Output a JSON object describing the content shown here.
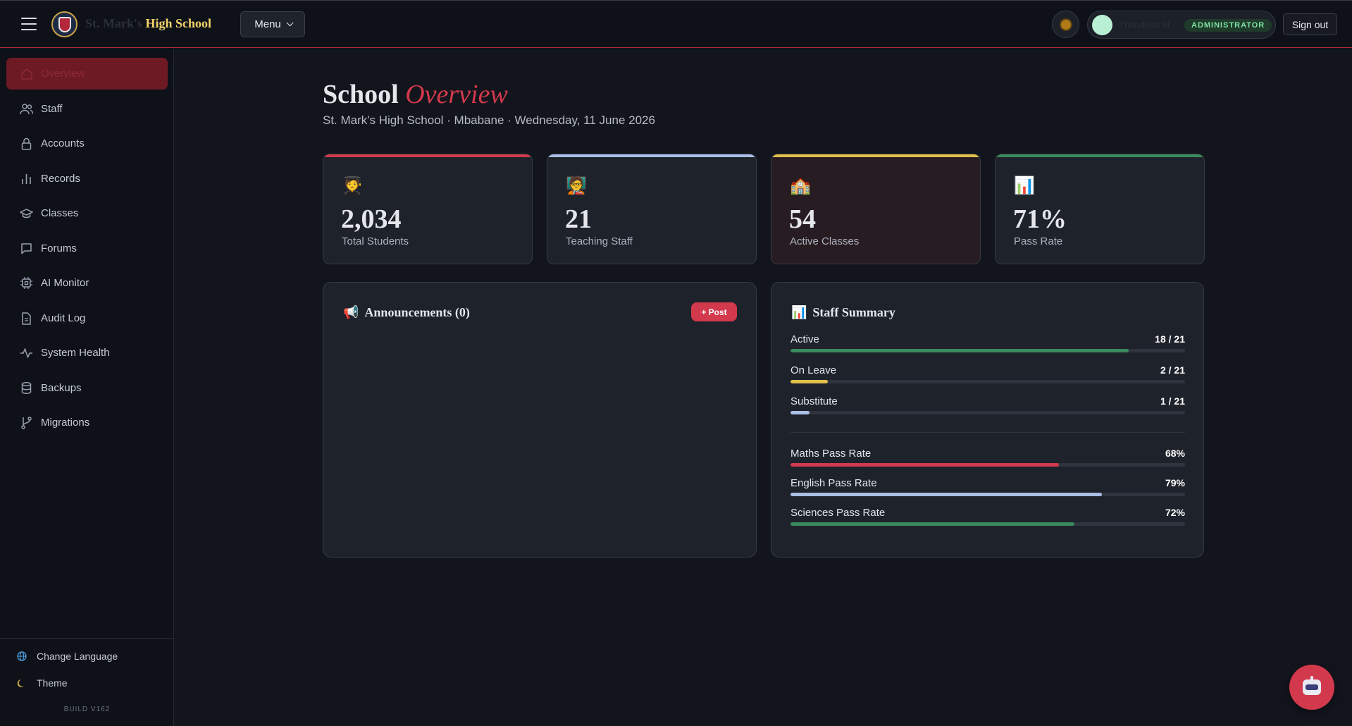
{
  "header": {
    "brand_prefix": "St. Mark's",
    "brand_name": "High School",
    "menu_label": "Menu",
    "user_name": "Thandeka M.",
    "role": "ADMINISTRATOR",
    "signout_label": "Sign out"
  },
  "sidebar": {
    "items": [
      {
        "label": "Overview",
        "icon": "home-icon"
      },
      {
        "label": "Staff",
        "icon": "users-icon"
      },
      {
        "label": "Accounts",
        "icon": "lock-icon"
      },
      {
        "label": "Records",
        "icon": "bar-chart-icon"
      },
      {
        "label": "Classes",
        "icon": "graduation-cap-icon"
      },
      {
        "label": "Forums",
        "icon": "message-icon"
      },
      {
        "label": "AI Monitor",
        "icon": "cpu-icon"
      },
      {
        "label": "Audit Log",
        "icon": "file-icon"
      },
      {
        "label": "System Health",
        "icon": "activity-icon"
      },
      {
        "label": "Backups",
        "icon": "database-icon"
      },
      {
        "label": "Migrations",
        "icon": "git-branch-icon"
      }
    ],
    "active_index": 0,
    "language_label": "Change Language",
    "theme_label": "Theme",
    "build": "BUILD V162"
  },
  "page": {
    "title_plain": "School",
    "title_accent": "Overview",
    "subtitle": "St. Mark's High School · Mbabane · Wednesday, 11 June 2026"
  },
  "stats": [
    {
      "emoji": "🧑‍🎓",
      "value": "2,034",
      "label": "Total Students",
      "accent": "#d3394c"
    },
    {
      "emoji": "🧑‍🏫",
      "value": "21",
      "label": "Teaching Staff",
      "accent": "#a9bfe6"
    },
    {
      "emoji": "🏫",
      "value": "54",
      "label": "Active Classes",
      "accent": "#e0c04a"
    },
    {
      "emoji": "📊",
      "value": "71%",
      "label": "Pass Rate",
      "accent": "#3a8a5c"
    }
  ],
  "announcements": {
    "emoji": "📢",
    "title": "Announcements (0)",
    "post_label": "+ Post"
  },
  "staff_summary": {
    "emoji": "📊",
    "title": "Staff Summary",
    "staff_metrics": [
      {
        "label": "Active",
        "value": "18 / 21",
        "fraction": 0.857,
        "color": "#3a8a5c"
      },
      {
        "label": "On Leave",
        "value": "2 / 21",
        "fraction": 0.095,
        "color": "#e0c04a"
      },
      {
        "label": "Substitute",
        "value": "1 / 21",
        "fraction": 0.048,
        "color": "#a9bfe6"
      }
    ],
    "pass_metrics": [
      {
        "label": "Maths Pass Rate",
        "value": "68%",
        "fraction": 0.68,
        "color": "#d3394c"
      },
      {
        "label": "English Pass Rate",
        "value": "79%",
        "fraction": 0.79,
        "color": "#a9bfe6"
      },
      {
        "label": "Sciences Pass Rate",
        "value": "72%",
        "fraction": 0.72,
        "color": "#3a8a5c"
      }
    ]
  }
}
